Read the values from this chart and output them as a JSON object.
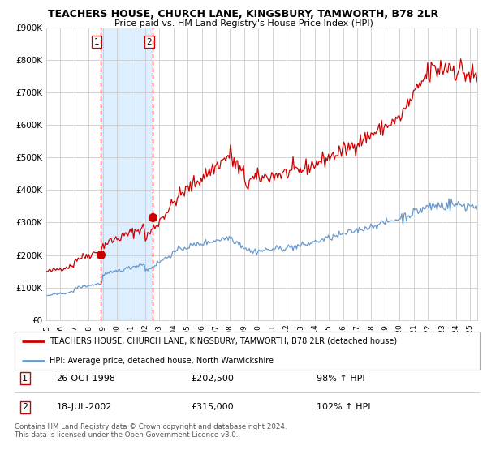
{
  "title": "TEACHERS HOUSE, CHURCH LANE, KINGSBURY, TAMWORTH, B78 2LR",
  "subtitle": "Price paid vs. HM Land Registry's House Price Index (HPI)",
  "red_label": "TEACHERS HOUSE, CHURCH LANE, KINGSBURY, TAMWORTH, B78 2LR (detached house)",
  "blue_label": "HPI: Average price, detached house, North Warwickshire",
  "sale1_date": "26-OCT-1998",
  "sale1_price": 202500,
  "sale1_pct": "98% ↑ HPI",
  "sale2_date": "18-JUL-2002",
  "sale2_price": 315000,
  "sale2_pct": "102% ↑ HPI",
  "footnote": "Contains HM Land Registry data © Crown copyright and database right 2024.\nThis data is licensed under the Open Government Licence v3.0.",
  "ylim": [
    0,
    900000
  ],
  "yticks": [
    0,
    100000,
    200000,
    300000,
    400000,
    500000,
    600000,
    700000,
    800000,
    900000
  ],
  "ytick_labels": [
    "£0",
    "£100K",
    "£200K",
    "£300K",
    "£400K",
    "£500K",
    "£600K",
    "£700K",
    "£800K",
    "£900K"
  ],
  "red_color": "#cc0000",
  "blue_color": "#6699cc",
  "shade_color": "#ddeeff",
  "vline_color": "#cc0000",
  "grid_color": "#cccccc",
  "bg_color": "#ffffff",
  "sale1_x": 1998.82,
  "sale2_x": 2002.54,
  "xlim_start": 1995,
  "xlim_end": 2025.5
}
